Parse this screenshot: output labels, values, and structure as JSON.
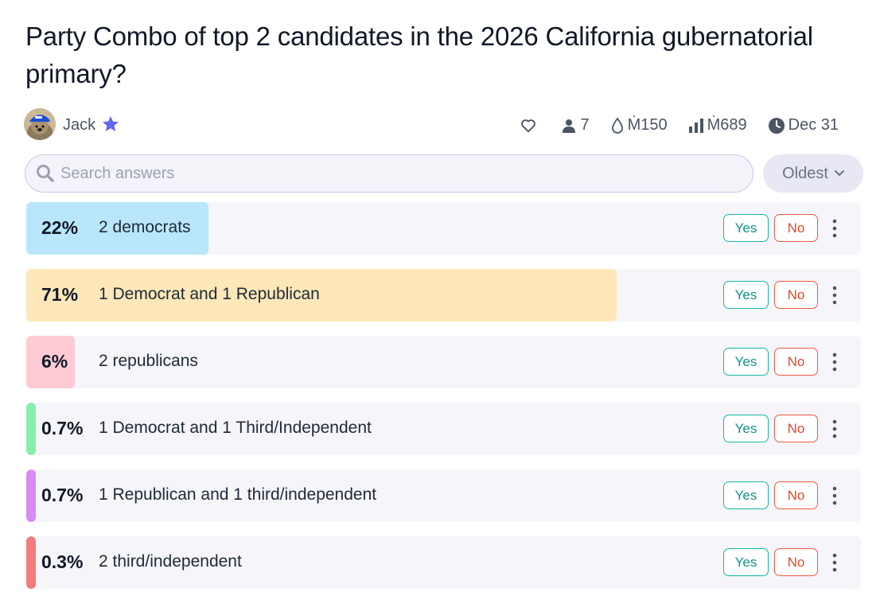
{
  "question": {
    "title": "Party Combo of top 2 candidates in the 2026 California gubernatorial primary?"
  },
  "author": {
    "name": "Jack"
  },
  "stats": {
    "traders": "7",
    "liquidity": "Ṁ150",
    "volume": "Ṁ689",
    "close_date": "Dec 31"
  },
  "search": {
    "placeholder": "Search answers"
  },
  "sort": {
    "label": "Oldest"
  },
  "buttons": {
    "yes": "Yes",
    "no": "No"
  },
  "answers": [
    {
      "pct": "22%",
      "value": 22,
      "text": "2 democrats",
      "color": "#b9e6fb"
    },
    {
      "pct": "71%",
      "value": 71,
      "text": "1 Democrat and 1 Republican",
      "color": "#fee7b9"
    },
    {
      "pct": "6%",
      "value": 6,
      "text": "2 republicans",
      "color": "#fecbd5"
    },
    {
      "pct": "0.7%",
      "value": 0.7,
      "text": "1 Democrat and 1 Third/Independent",
      "color": "#86efac"
    },
    {
      "pct": "0.7%",
      "value": 0.7,
      "text": "1 Republican and 1 third/independent",
      "color": "#d98bf2"
    },
    {
      "pct": "0.3%",
      "value": 0.3,
      "text": "2 third/independent",
      "color": "#f27b7b"
    }
  ]
}
